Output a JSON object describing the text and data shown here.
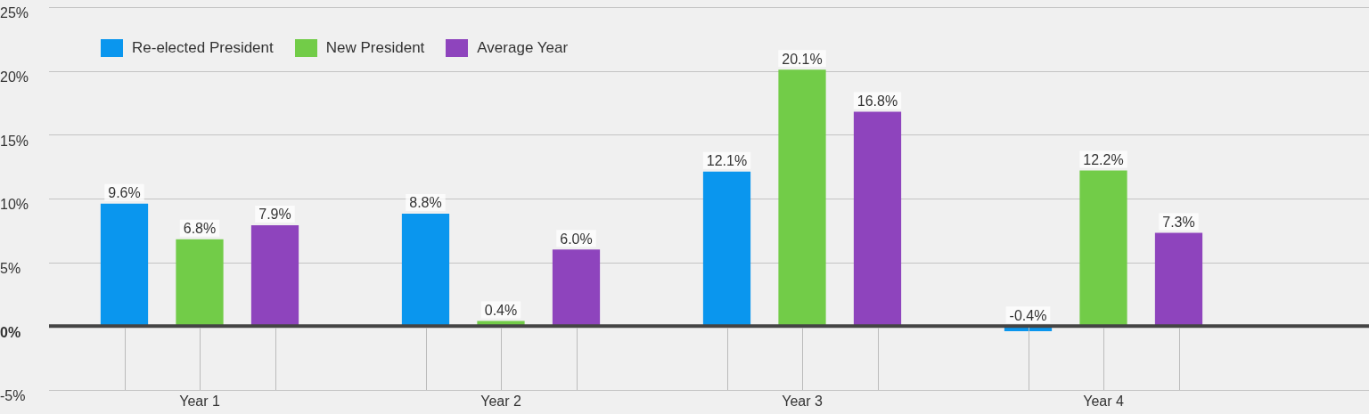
{
  "chart_data": {
    "type": "bar",
    "categories": [
      "Year 1",
      "Year 2",
      "Year 3",
      "Year 4"
    ],
    "series": [
      {
        "name": "Re-elected President",
        "color": "#0a96ee",
        "values": [
          9.6,
          8.8,
          12.1,
          -0.4
        ],
        "value_labels": [
          "9.6%",
          "8.8%",
          "12.1%",
          "-0.4%"
        ]
      },
      {
        "name": "New President",
        "color": "#72cc48",
        "values": [
          6.8,
          0.4,
          20.1,
          12.2
        ],
        "value_labels": [
          "6.8%",
          "0.4%",
          "20.1%",
          "12.2%"
        ]
      },
      {
        "name": "Average Year",
        "color": "#8e44bd",
        "values": [
          7.9,
          6.0,
          16.8,
          7.3
        ],
        "value_labels": [
          "7.9%",
          "6.0%",
          "16.8%",
          "7.3%"
        ]
      }
    ],
    "ylim": [
      -5,
      25
    ],
    "yticks": [
      {
        "value": -5,
        "label": "-5%"
      },
      {
        "value": 0,
        "label": "0%"
      },
      {
        "value": 5,
        "label": "5%"
      },
      {
        "value": 10,
        "label": "10%"
      },
      {
        "value": 15,
        "label": "15%"
      },
      {
        "value": 20,
        "label": "20%"
      },
      {
        "value": 25,
        "label": "25%"
      }
    ],
    "grid": "y",
    "legend": "top left"
  }
}
